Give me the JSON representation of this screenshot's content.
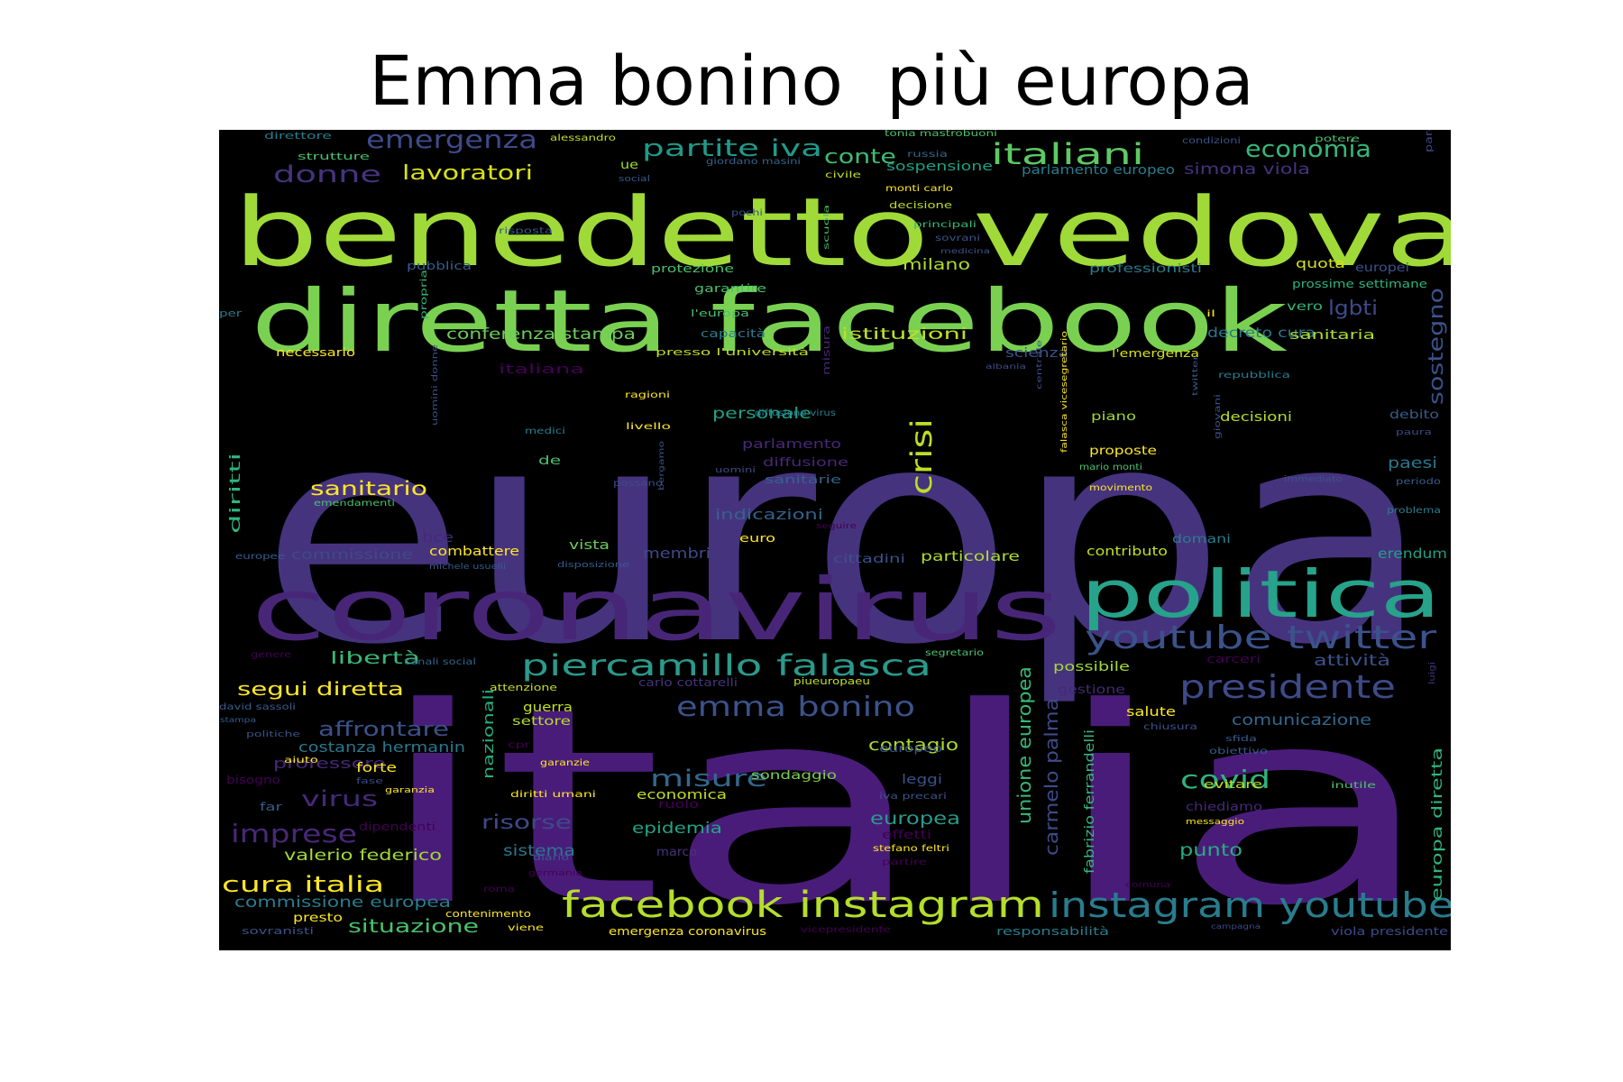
{
  "title": "Emma bonino  più europa",
  "colors": {
    "background": "#000000",
    "palette": [
      "#440154",
      "#46337e",
      "#365c8d",
      "#277f8e",
      "#1fa187",
      "#4ac16d",
      "#a0da39",
      "#fde725"
    ]
  },
  "words": [
    {
      "text": "europa",
      "color": "#46337e"
    },
    {
      "text": "italia",
      "color": "#4a1c7a"
    },
    {
      "text": "benedetto vedova",
      "color": "#a0da39"
    },
    {
      "text": "diretta facebook",
      "color": "#7ad151"
    },
    {
      "text": "coronavirus",
      "color": "#482677"
    },
    {
      "text": "politica",
      "color": "#26a38a"
    },
    {
      "text": "youtube twitter",
      "color": "#3b528b"
    },
    {
      "text": "piercamillo falasca",
      "color": "#2a9a8b"
    },
    {
      "text": "emma bonino",
      "color": "#3b528b"
    },
    {
      "text": "presidente",
      "color": "#3e4a89"
    },
    {
      "text": "facebook instagram",
      "color": "#b5de2b"
    },
    {
      "text": "instagram youtube",
      "color": "#287d8e"
    },
    {
      "text": "emergenza",
      "color": "#3e4a89"
    },
    {
      "text": "partite iva",
      "color": "#1f9a8a"
    },
    {
      "text": "italiani",
      "color": "#5ec962"
    },
    {
      "text": "economia",
      "color": "#35b779"
    },
    {
      "text": "donne",
      "color": "#46337e"
    },
    {
      "text": "lavoratori",
      "color": "#d8e219"
    },
    {
      "text": "conte",
      "color": "#3fbc73"
    },
    {
      "text": "crisi",
      "color": "#bddf26"
    },
    {
      "text": "sanitario",
      "color": "#fde725"
    },
    {
      "text": "covid",
      "color": "#2fb47c"
    },
    {
      "text": "lgbti",
      "color": "#3e4a89"
    },
    {
      "text": "sostegno",
      "color": "#3b528b"
    },
    {
      "text": "misure",
      "color": "#31688e"
    },
    {
      "text": "imprese",
      "color": "#482878"
    },
    {
      "text": "virus",
      "color": "#482878"
    },
    {
      "text": "cura italia",
      "color": "#fde725"
    },
    {
      "text": "affrontare",
      "color": "#3b528b"
    },
    {
      "text": "segui diretta",
      "color": "#fde725"
    },
    {
      "text": "libertà",
      "color": "#38b977"
    },
    {
      "text": "risorse",
      "color": "#3e4a89"
    },
    {
      "text": "conferenza stampa",
      "color": "#6ccd5a"
    },
    {
      "text": "istituzioni",
      "color": "#bddf26"
    },
    {
      "text": "decreto cura",
      "color": "#2a788e"
    },
    {
      "text": "personale",
      "color": "#1fa187"
    },
    {
      "text": "indicazioni",
      "color": "#33638d"
    },
    {
      "text": "unione europea",
      "color": "#38b977"
    },
    {
      "text": "carmelo palma",
      "color": "#3e4a89"
    },
    {
      "text": "situazione",
      "color": "#4ac16d"
    },
    {
      "text": "commissione europea",
      "color": "#287d8e"
    },
    {
      "text": "costanza hermanin",
      "color": "#2a788e"
    },
    {
      "text": "valerio federico",
      "color": "#a0da39"
    },
    {
      "text": "epidemia",
      "color": "#20a486"
    },
    {
      "text": "sistema",
      "color": "#2a788e"
    },
    {
      "text": "punto",
      "color": "#26ad81"
    },
    {
      "text": "europea",
      "color": "#2a9a8b"
    },
    {
      "text": "europa diretta",
      "color": "#2fb47c"
    },
    {
      "text": "contagio",
      "color": "#addc30"
    },
    {
      "text": "diritti",
      "color": "#2fb47c"
    },
    {
      "text": "comunicazione",
      "color": "#31688e"
    },
    {
      "text": "attività",
      "color": "#3b528b"
    },
    {
      "text": "paesi",
      "color": "#2a788e"
    },
    {
      "text": "milano",
      "color": "#addc30"
    },
    {
      "text": "scienza",
      "color": "#3b528b"
    },
    {
      "text": "professore",
      "color": "#482878"
    },
    {
      "text": "membri",
      "color": "#3e4a89"
    },
    {
      "text": "particolare",
      "color": "#addc30"
    },
    {
      "text": "commissione",
      "color": "#3e4a89"
    },
    {
      "text": "combattere",
      "color": "#fde725"
    },
    {
      "text": "parlamento",
      "color": "#482878"
    },
    {
      "text": "diffusione",
      "color": "#482878"
    },
    {
      "text": "salute",
      "color": "#fde725"
    },
    {
      "text": "forte",
      "color": "#fde725"
    },
    {
      "text": "simona viola",
      "color": "#46337e"
    },
    {
      "text": "sospensione",
      "color": "#1fa187"
    },
    {
      "text": "parlamento europeo",
      "color": "#287d8e"
    },
    {
      "text": "economica",
      "color": "#c2df23"
    },
    {
      "text": "bce",
      "color": "#482878"
    },
    {
      "text": "leggi",
      "color": "#3b528b"
    },
    {
      "text": "chiediamo",
      "color": "#482878"
    },
    {
      "text": "nazionali",
      "color": "#27ad81"
    },
    {
      "text": "guerra",
      "color": "#c2df23"
    },
    {
      "text": "settore",
      "color": "#b5de2b"
    },
    {
      "text": "possibile",
      "color": "#a0da39"
    },
    {
      "text": "gestione",
      "color": "#482878"
    },
    {
      "text": "fabrizio ferrandelli",
      "color": "#35b779"
    },
    {
      "text": "sondaggio",
      "color": "#7ad151"
    },
    {
      "text": "europeo",
      "color": "#3b528b"
    },
    {
      "text": "evitare",
      "color": "#c2df23"
    },
    {
      "text": "erendum",
      "color": "#1fa187"
    },
    {
      "text": "contributo",
      "color": "#c2df23"
    },
    {
      "text": "domani",
      "color": "#287d8e"
    },
    {
      "text": "proposte",
      "color": "#fde725"
    },
    {
      "text": "decisioni",
      "color": "#b5de2b"
    },
    {
      "text": "piano",
      "color": "#a0da39"
    },
    {
      "text": "debito",
      "color": "#365c8d"
    },
    {
      "text": "cittadini",
      "color": "#3b528b"
    },
    {
      "text": "vista",
      "color": "#6ccd5a"
    },
    {
      "text": "europei",
      "color": "#3b528b"
    },
    {
      "text": "quota",
      "color": "#d8e219"
    },
    {
      "text": "sanitaria",
      "color": "#addc30"
    },
    {
      "text": "vero",
      "color": "#35b779"
    },
    {
      "text": "prossime settimane",
      "color": "#2fb47c"
    },
    {
      "text": "professionisti",
      "color": "#287d8e"
    },
    {
      "text": "garantire",
      "color": "#4ac16d"
    },
    {
      "text": "protezione",
      "color": "#4ac16d"
    },
    {
      "text": "pubblica",
      "color": "#365c8d"
    },
    {
      "text": "l'europa",
      "color": "#4ac16d"
    },
    {
      "text": "capacità",
      "color": "#287d8e"
    },
    {
      "text": "presso l'università",
      "color": "#c2df23"
    },
    {
      "text": "necessario",
      "color": "#fde725"
    },
    {
      "text": "italiana",
      "color": "#440154"
    },
    {
      "text": "l'emergenza",
      "color": "#d8e219"
    },
    {
      "text": "repubblica",
      "color": "#287d8e"
    },
    {
      "text": "sanitarie",
      "color": "#33638d"
    },
    {
      "text": "direttore",
      "color": "#287d8e"
    },
    {
      "text": "strutture",
      "color": "#4ac16d"
    },
    {
      "text": "alessandro",
      "color": "#c2df23"
    },
    {
      "text": "tonia mastrobuoni",
      "color": "#4ac16d"
    },
    {
      "text": "condizioni",
      "color": "#3b528b"
    },
    {
      "text": "potere",
      "color": "#4ac16d"
    },
    {
      "text": "giordano masini",
      "color": "#33638d"
    },
    {
      "text": "russia",
      "color": "#33638d"
    },
    {
      "text": "civile",
      "color": "#c2df23"
    },
    {
      "text": "monti carlo",
      "color": "#fde725"
    },
    {
      "text": "decisione",
      "color": "#c2df23"
    },
    {
      "text": "principali",
      "color": "#35b779"
    },
    {
      "text": "sovrani",
      "color": "#3b528b"
    },
    {
      "text": "medicina",
      "color": "#3b528b"
    },
    {
      "text": "pochi",
      "color": "#3b528b"
    },
    {
      "text": "social",
      "color": "#365c8d"
    },
    {
      "text": "ue",
      "color": "#a0da39"
    },
    {
      "text": "risposta",
      "color": "#365c8d"
    },
    {
      "text": "scuola",
      "color": "#4ac16d"
    },
    {
      "text": "parole",
      "color": "#3e4a89"
    },
    {
      "text": "per",
      "color": "#287d8e"
    },
    {
      "text": "propria",
      "color": "#35b779"
    },
    {
      "text": "il",
      "color": "#fde725"
    },
    {
      "text": "albania",
      "color": "#3e4a89"
    },
    {
      "text": "misura",
      "color": "#482878"
    },
    {
      "text": "ragioni",
      "color": "#fde725"
    },
    {
      "text": "diffusione virus",
      "color": "#287d8e"
    },
    {
      "text": "livello",
      "color": "#fde725"
    },
    {
      "text": "medici",
      "color": "#287d8e"
    },
    {
      "text": "centrale",
      "color": "#3b528b"
    },
    {
      "text": "twitter",
      "color": "#365c8d"
    },
    {
      "text": "paura",
      "color": "#3e4a89"
    },
    {
      "text": "periodo",
      "color": "#365c8d"
    },
    {
      "text": "immediato",
      "color": "#3b528b"
    },
    {
      "text": "giovani",
      "color": "#3b528b"
    },
    {
      "text": "movimento",
      "color": "#fde725"
    },
    {
      "text": "mario monti",
      "color": "#4ac16d"
    },
    {
      "text": "falasca vicesegretario",
      "color": "#fde725"
    },
    {
      "text": "uomini donne",
      "color": "#3b528b"
    },
    {
      "text": "possano",
      "color": "#3e4a89"
    },
    {
      "text": "uomini",
      "color": "#3e4a89"
    },
    {
      "text": "de",
      "color": "#4ac16d"
    },
    {
      "text": "emendamenti",
      "color": "#4ac16d"
    },
    {
      "text": "bergamo",
      "color": "#3b528b"
    },
    {
      "text": "seguire",
      "color": "#440154"
    },
    {
      "text": "euro",
      "color": "#fde725"
    },
    {
      "text": "problema",
      "color": "#287d8e"
    },
    {
      "text": "europee",
      "color": "#365c8d"
    },
    {
      "text": "michele usuelli",
      "color": "#365c8d"
    },
    {
      "text": "disposizione",
      "color": "#365c8d"
    },
    {
      "text": "genere",
      "color": "#440154"
    },
    {
      "text": "canali social",
      "color": "#33638d"
    },
    {
      "text": "segretario",
      "color": "#4ac16d"
    },
    {
      "text": "carceri",
      "color": "#440154"
    },
    {
      "text": "luigi",
      "color": "#46337e"
    },
    {
      "text": "attenzione",
      "color": "#c2df23"
    },
    {
      "text": "carlo cottarelli",
      "color": "#46337e"
    },
    {
      "text": "piueuropaeu",
      "color": "#c2df23"
    },
    {
      "text": "david sassoli",
      "color": "#365c8d"
    },
    {
      "text": "stampa",
      "color": "#365c8d"
    },
    {
      "text": "politiche",
      "color": "#3b528b"
    },
    {
      "text": "cpr",
      "color": "#440154"
    },
    {
      "text": "chiusura",
      "color": "#3b528b"
    },
    {
      "text": "sfida",
      "color": "#365c8d"
    },
    {
      "text": "obiettivo",
      "color": "#365c8d"
    },
    {
      "text": "aiuto",
      "color": "#fde725"
    },
    {
      "text": "fase",
      "color": "#3e4a89"
    },
    {
      "text": "bisogno",
      "color": "#440154"
    },
    {
      "text": "garanzie",
      "color": "#fde725"
    },
    {
      "text": "garanzia",
      "color": "#fde725"
    },
    {
      "text": "diritti umani",
      "color": "#fde725"
    },
    {
      "text": "ruolo",
      "color": "#440154"
    },
    {
      "text": "iva precari",
      "color": "#3b528b"
    },
    {
      "text": "inutile",
      "color": "#4ac16d"
    },
    {
      "text": "messaggio",
      "color": "#fde725"
    },
    {
      "text": "far",
      "color": "#365c8d"
    },
    {
      "text": "dipendenti",
      "color": "#440154"
    },
    {
      "text": "effetti",
      "color": "#440154"
    },
    {
      "text": "stefano feltri",
      "color": "#fde725"
    },
    {
      "text": "marco",
      "color": "#46337e"
    },
    {
      "text": "partire",
      "color": "#440154"
    },
    {
      "text": "diario",
      "color": "#365c8d"
    },
    {
      "text": "germania",
      "color": "#440154"
    },
    {
      "text": "roma",
      "color": "#440154"
    },
    {
      "text": "comuna",
      "color": "#440154"
    },
    {
      "text": "presto",
      "color": "#fde725"
    },
    {
      "text": "contenimento",
      "color": "#fde725"
    },
    {
      "text": "sovranisti",
      "color": "#3b528b"
    },
    {
      "text": "viene",
      "color": "#fde725"
    },
    {
      "text": "emergenza coronavirus",
      "color": "#fde725"
    },
    {
      "text": "vicepresidente",
      "color": "#440154"
    },
    {
      "text": "responsabilità",
      "color": "#287d8e"
    },
    {
      "text": "campagna",
      "color": "#3e4a89"
    },
    {
      "text": "viola presidente",
      "color": "#3e4a89"
    }
  ]
}
